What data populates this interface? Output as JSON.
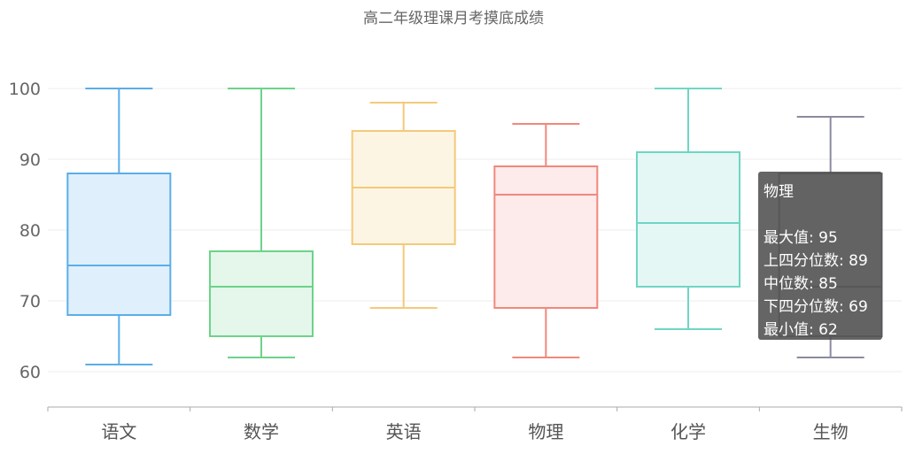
{
  "chart_data": {
    "type": "boxplot",
    "title": "高二年级理课月考摸底成绩",
    "categories": [
      "语文",
      "数学",
      "英语",
      "物理",
      "化学",
      "生物"
    ],
    "series": [
      {
        "min": 61,
        "q1": 68,
        "median": 75,
        "q3": 88,
        "max": 100,
        "color": "#5aaee8",
        "fill": "#e0effc"
      },
      {
        "min": 62,
        "q1": 65,
        "median": 72,
        "q3": 77,
        "max": 100,
        "color": "#6dd38a",
        "fill": "#e4f7ea"
      },
      {
        "min": 69,
        "q1": 78,
        "median": 86,
        "q3": 94,
        "max": 98,
        "color": "#f5c97a",
        "fill": "#fdf5e4"
      },
      {
        "min": 62,
        "q1": 69,
        "median": 85,
        "q3": 89,
        "max": 95,
        "color": "#f0887c",
        "fill": "#fdeaea"
      },
      {
        "min": 66,
        "q1": 72,
        "median": 81,
        "q3": 91,
        "max": 100,
        "color": "#6fd6c4",
        "fill": "#e4f7f4"
      },
      {
        "min": 62,
        "q1": 65,
        "median": 72,
        "q3": 88,
        "max": 96,
        "color": "#8a8aa0",
        "fill": "#eeeef4"
      }
    ],
    "y_ticks": [
      60,
      70,
      80,
      90,
      100
    ],
    "ylim": [
      55,
      105
    ],
    "grid": true
  },
  "tooltip": {
    "title": "物理",
    "max": "最大值: 95",
    "q3": "上四分位数: 89",
    "median": "中位数: 85",
    "q1": "下四分位数: 69",
    "min": "最小值: 62"
  }
}
